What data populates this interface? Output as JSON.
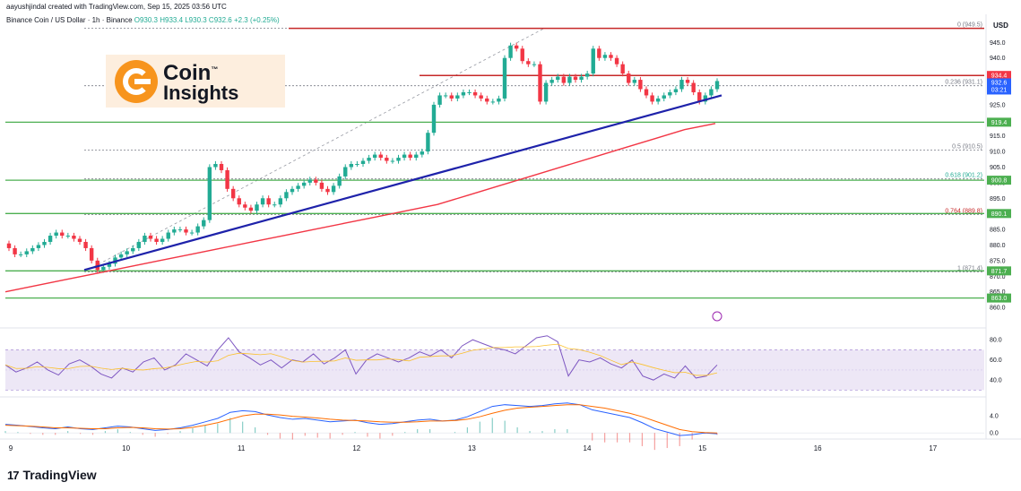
{
  "header": {
    "text": "aayushjindal created with TradingView.com, Sep 15, 2025 03:56 UTC"
  },
  "legend": {
    "symbol": "Binance Coin / US Dollar · 1h · Binance",
    "ohlc": "O930.3  H933.4  L930.3  C932.6  +2.3 (+0.25%)"
  },
  "currency": "USD",
  "logo": {
    "line1": "Coin",
    "line2": "Insights",
    "tm": "™"
  },
  "brand": {
    "mark": "17",
    "name": "TradingView"
  },
  "colors": {
    "up": "#22ab94",
    "down": "#f23645",
    "support_line": "#1e22aa",
    "moving_average": "#f23645",
    "horizontal_level": "#4caf50",
    "resistance_line": "#c62828",
    "rsi_line": "#7e57c2",
    "rsi_band": "#ede7f6",
    "macd_line": "#2962ff",
    "signal_line": "#ff6d00"
  },
  "chart_data": {
    "type": "candlestick",
    "price_axis": {
      "ylim": [
        858,
        954
      ],
      "ticks": [
        945.0,
        940.0,
        935.0,
        925.0,
        920.0,
        915.0,
        910.0,
        905.0,
        900.0,
        895.0,
        890.0,
        885.0,
        880.0,
        875.0,
        870.0,
        865.0,
        860.0
      ]
    },
    "time_axis": {
      "labels": [
        "9",
        "10",
        "11",
        "12",
        "13",
        "14",
        "15",
        "16",
        "17"
      ]
    },
    "candles_close": [
      879,
      877,
      877,
      878,
      879,
      880,
      881,
      883,
      884,
      883,
      883,
      882,
      881,
      879,
      875,
      872,
      873,
      874,
      876,
      877,
      878,
      879,
      881,
      883,
      882,
      881,
      882,
      884,
      885,
      885,
      884,
      884,
      886,
      888,
      905,
      906,
      904,
      898,
      895,
      893,
      892,
      891,
      893,
      895,
      893,
      893,
      895,
      897,
      898,
      899,
      900,
      901,
      900,
      898,
      897,
      899,
      902,
      905,
      906,
      906,
      907,
      908,
      909,
      908,
      907,
      907,
      908,
      909,
      908,
      909,
      910,
      916,
      925,
      928,
      928,
      927,
      928,
      929,
      929,
      928,
      927,
      926,
      926,
      927,
      940,
      944,
      943,
      939,
      938,
      938,
      926,
      932,
      933,
      934,
      932,
      934,
      933,
      934,
      935,
      943,
      940,
      941,
      940,
      938,
      935,
      932,
      933,
      930,
      928,
      926,
      927,
      928,
      929,
      930,
      933,
      932,
      929,
      926,
      928,
      930,
      932.6
    ],
    "price_levels": [
      {
        "label": "919.4",
        "value": 919.4
      },
      {
        "label": "900.8",
        "value": 900.8
      },
      {
        "label": "890.1",
        "value": 890.1
      },
      {
        "label": "871.7",
        "value": 871.7
      },
      {
        "label": "863.0",
        "value": 863.0
      }
    ],
    "resistance_levels": [
      {
        "label": "934.4",
        "value": 934.4
      }
    ],
    "current_price": {
      "label": "932.6",
      "countdown": "03:21",
      "value": 932.6
    },
    "fibonacci": [
      {
        "label": "0 (949.5)",
        "value": 949.5
      },
      {
        "label": "0.236 (931.1)",
        "value": 931.1
      },
      {
        "label": "0.5 (910.5)",
        "value": 910.5
      },
      {
        "label": "0.618 (901.2)",
        "value": 901.2
      },
      {
        "label": "0.764 (889.8)",
        "value": 889.8
      },
      {
        "label": "1 (871.4)",
        "value": 871.4
      }
    ],
    "trendline": {
      "from_value": 872,
      "to_value": 928
    },
    "moving_average_values": [
      865,
      867,
      869,
      871,
      873,
      875,
      877,
      879,
      881,
      883,
      885,
      887,
      889,
      891,
      893,
      896,
      899,
      902,
      905,
      908,
      911,
      914,
      917,
      919
    ],
    "rsi": {
      "axis_ticks": [
        80.0,
        60.0,
        40.0
      ],
      "band": [
        30,
        70
      ],
      "mid": 50,
      "ylim": [
        25,
        90
      ],
      "values": [
        55,
        48,
        52,
        58,
        50,
        45,
        56,
        60,
        54,
        46,
        42,
        52,
        48,
        58,
        62,
        50,
        55,
        66,
        60,
        54,
        70,
        82,
        68,
        62,
        55,
        60,
        52,
        60,
        58,
        66,
        56,
        62,
        70,
        46,
        60,
        66,
        62,
        58,
        62,
        68,
        64,
        70,
        62,
        74,
        80,
        76,
        72,
        70,
        66,
        74,
        82,
        84,
        78,
        44,
        60,
        58,
        62,
        56,
        52,
        60,
        44,
        40,
        46,
        42,
        54,
        42,
        44,
        55
      ]
    },
    "macd": {
      "axis_ticks": [
        4.0,
        0.0
      ],
      "ylim": [
        -1,
        8
      ],
      "macd_line": [
        2.0,
        1.8,
        1.5,
        1.2,
        1.0,
        1.4,
        1.0,
        0.8,
        1.2,
        1.6,
        1.4,
        1.0,
        0.6,
        0.8,
        1.2,
        1.8,
        2.6,
        3.4,
        4.8,
        5.2,
        5.0,
        4.2,
        3.6,
        3.2,
        3.4,
        3.0,
        2.6,
        2.8,
        3.0,
        2.4,
        2.0,
        2.2,
        2.6,
        3.0,
        3.2,
        2.8,
        3.0,
        3.8,
        5.0,
        6.2,
        6.6,
        6.4,
        6.2,
        6.4,
        6.8,
        7.0,
        6.6,
        5.4,
        4.8,
        4.2,
        3.6,
        2.4,
        1.0,
        0.2,
        -0.6,
        -0.4,
        0.0,
        -0.2
      ],
      "signal_line": [
        1.8,
        1.7,
        1.6,
        1.4,
        1.2,
        1.2,
        1.1,
        1.0,
        1.0,
        1.2,
        1.3,
        1.2,
        1.0,
        0.9,
        1.0,
        1.3,
        1.8,
        2.4,
        3.2,
        4.0,
        4.4,
        4.4,
        4.2,
        3.9,
        3.7,
        3.5,
        3.2,
        3.0,
        2.9,
        2.8,
        2.6,
        2.5,
        2.5,
        2.6,
        2.8,
        2.8,
        2.9,
        3.2,
        3.8,
        4.6,
        5.3,
        5.8,
        6.0,
        6.2,
        6.4,
        6.6,
        6.6,
        6.2,
        5.8,
        5.2,
        4.6,
        3.8,
        2.8,
        1.8,
        0.8,
        0.3,
        0.1,
        0.0
      ]
    }
  }
}
